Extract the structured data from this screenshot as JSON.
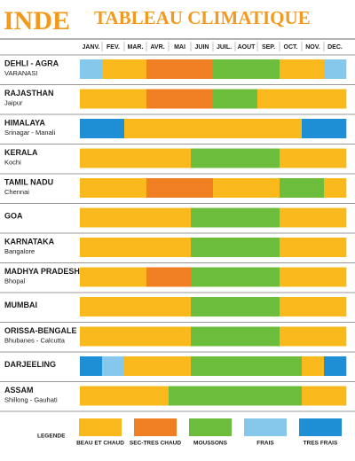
{
  "title": "INDE",
  "subtitle": "TABLEAU CLIMATIQUE",
  "months": [
    "JANV.",
    "FEV.",
    "MAR.",
    "AVR.",
    "MAI",
    "JUIN",
    "JUIL.",
    "AOUT",
    "SEP.",
    "OCT.",
    "NOV.",
    "DEC."
  ],
  "legend": {
    "label": "LEGENDE",
    "items": [
      {
        "key": "B",
        "label": "BEAU ET CHAUD",
        "color": "#f9b81c"
      },
      {
        "key": "S",
        "label": "SEC-TRES CHAUD",
        "color": "#f07e22"
      },
      {
        "key": "M",
        "label": "MOUSSONS",
        "color": "#6cbd3c"
      },
      {
        "key": "F",
        "label": "FRAIS",
        "color": "#86c8ec"
      },
      {
        "key": "T",
        "label": "TRES FRAIS",
        "color": "#1e8fd5"
      }
    ]
  },
  "rows": [
    {
      "name": "DEHLI - AGRA",
      "sub": "VARANASI",
      "cells": [
        "F",
        "B",
        "B",
        "S",
        "S",
        "S",
        "M",
        "M",
        "M",
        "B",
        "B",
        "F"
      ]
    },
    {
      "name": "RAJASTHAN",
      "sub": "Jaipur",
      "cells": [
        "B",
        "B",
        "B",
        "S",
        "S",
        "S",
        "M",
        "M",
        "B",
        "B",
        "B",
        "B"
      ]
    },
    {
      "name": "HIMALAYA",
      "sub": "Srinagar - Manali",
      "cells": [
        "T",
        "T",
        "B",
        "B",
        "B",
        "B",
        "B",
        "B",
        "B",
        "B",
        "T",
        "T"
      ]
    },
    {
      "name": "KERALA",
      "sub": "Kochi",
      "cells": [
        "B",
        "B",
        "B",
        "B",
        "B",
        "M",
        "M",
        "M",
        "M",
        "B",
        "B",
        "B"
      ]
    },
    {
      "name": "TAMIL NADU",
      "sub": "Chennai",
      "cells": [
        "B",
        "B",
        "B",
        "S",
        "S",
        "S",
        "B",
        "B",
        "B",
        "M",
        "M",
        "B"
      ]
    },
    {
      "name": "GOA",
      "cells": [
        "B",
        "B",
        "B",
        "B",
        "B",
        "M",
        "M",
        "M",
        "M",
        "B",
        "B",
        "B"
      ]
    },
    {
      "name": "KARNATAKA",
      "sub": "Bangalore",
      "cells": [
        "B",
        "B",
        "B",
        "B",
        "B",
        "M",
        "M",
        "M",
        "M",
        "B",
        "B",
        "B"
      ]
    },
    {
      "name": "MADHYA PRADESH",
      "sub": "Bhopal",
      "cells": [
        "B",
        "B",
        "B",
        "S",
        "S",
        "M",
        "M",
        "M",
        "M",
        "B",
        "B",
        "B"
      ]
    },
    {
      "name": "MUMBAI",
      "cells": [
        "B",
        "B",
        "B",
        "B",
        "B",
        "M",
        "M",
        "M",
        "M",
        "B",
        "B",
        "B"
      ]
    },
    {
      "name": "ORISSA-BENGALE",
      "sub": "Bhubanes - Calcutta",
      "cells": [
        "B",
        "B",
        "B",
        "B",
        "B",
        "M",
        "M",
        "M",
        "M",
        "B",
        "B",
        "B"
      ]
    },
    {
      "name": "DARJEELING",
      "cells": [
        "T",
        "F",
        "B",
        "B",
        "B",
        "M",
        "M",
        "M",
        "M",
        "M",
        "B",
        "T"
      ]
    },
    {
      "name": "ASSAM",
      "sub": "Shillong - Gauhati",
      "cells": [
        "B",
        "B",
        "B",
        "B",
        "M",
        "M",
        "M",
        "M",
        "M",
        "M",
        "B",
        "B"
      ]
    }
  ]
}
